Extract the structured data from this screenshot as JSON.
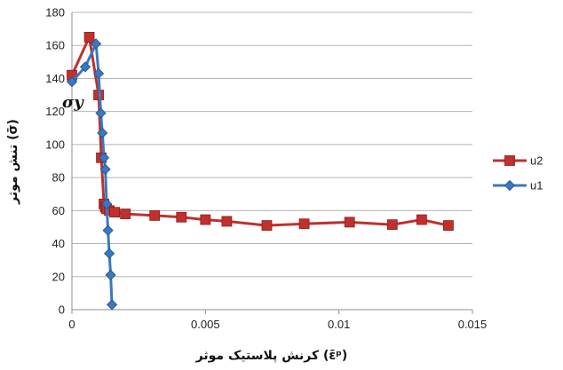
{
  "chart_data": {
    "type": "line",
    "xlabel": "کرنش پلاستیک موثر (ε̄ᵖ)",
    "ylabel": "تنش موثر (σ̄)",
    "xlim": [
      0,
      0.015
    ],
    "ylim": [
      0,
      180
    ],
    "x_ticks": [
      "0",
      "0.005",
      "0.01",
      "0.015"
    ],
    "y_ticks": [
      "0",
      "20",
      "40",
      "60",
      "80",
      "100",
      "120",
      "140",
      "160",
      "180"
    ],
    "grid": "horizontal",
    "legend_position": "right",
    "annotation": "σy",
    "series": [
      {
        "name": "u2",
        "color": "#c0302e",
        "marker": "square",
        "x": [
          0.0,
          0.00065,
          0.001,
          0.0011,
          0.0012,
          0.00125,
          0.0013,
          0.0014,
          0.0016,
          0.002,
          0.0031,
          0.0041,
          0.005,
          0.0058,
          0.0073,
          0.0087,
          0.0104,
          0.012,
          0.0131,
          0.0141
        ],
        "y": [
          142,
          165,
          130,
          92,
          64,
          62,
          61,
          60,
          59,
          58,
          57,
          56,
          54.5,
          53.5,
          51,
          52,
          53,
          51.5,
          54.5,
          51
        ]
      },
      {
        "name": "u1",
        "color": "#3a78c0",
        "marker": "diamond",
        "x": [
          0.0,
          0.0005,
          0.0009,
          0.001,
          0.00108,
          0.00114,
          0.0012,
          0.00125,
          0.0013,
          0.00135,
          0.0014,
          0.00145,
          0.0015
        ],
        "y": [
          138,
          147,
          161,
          143,
          119,
          107,
          92,
          85,
          64,
          48,
          34,
          21,
          3
        ]
      }
    ]
  }
}
